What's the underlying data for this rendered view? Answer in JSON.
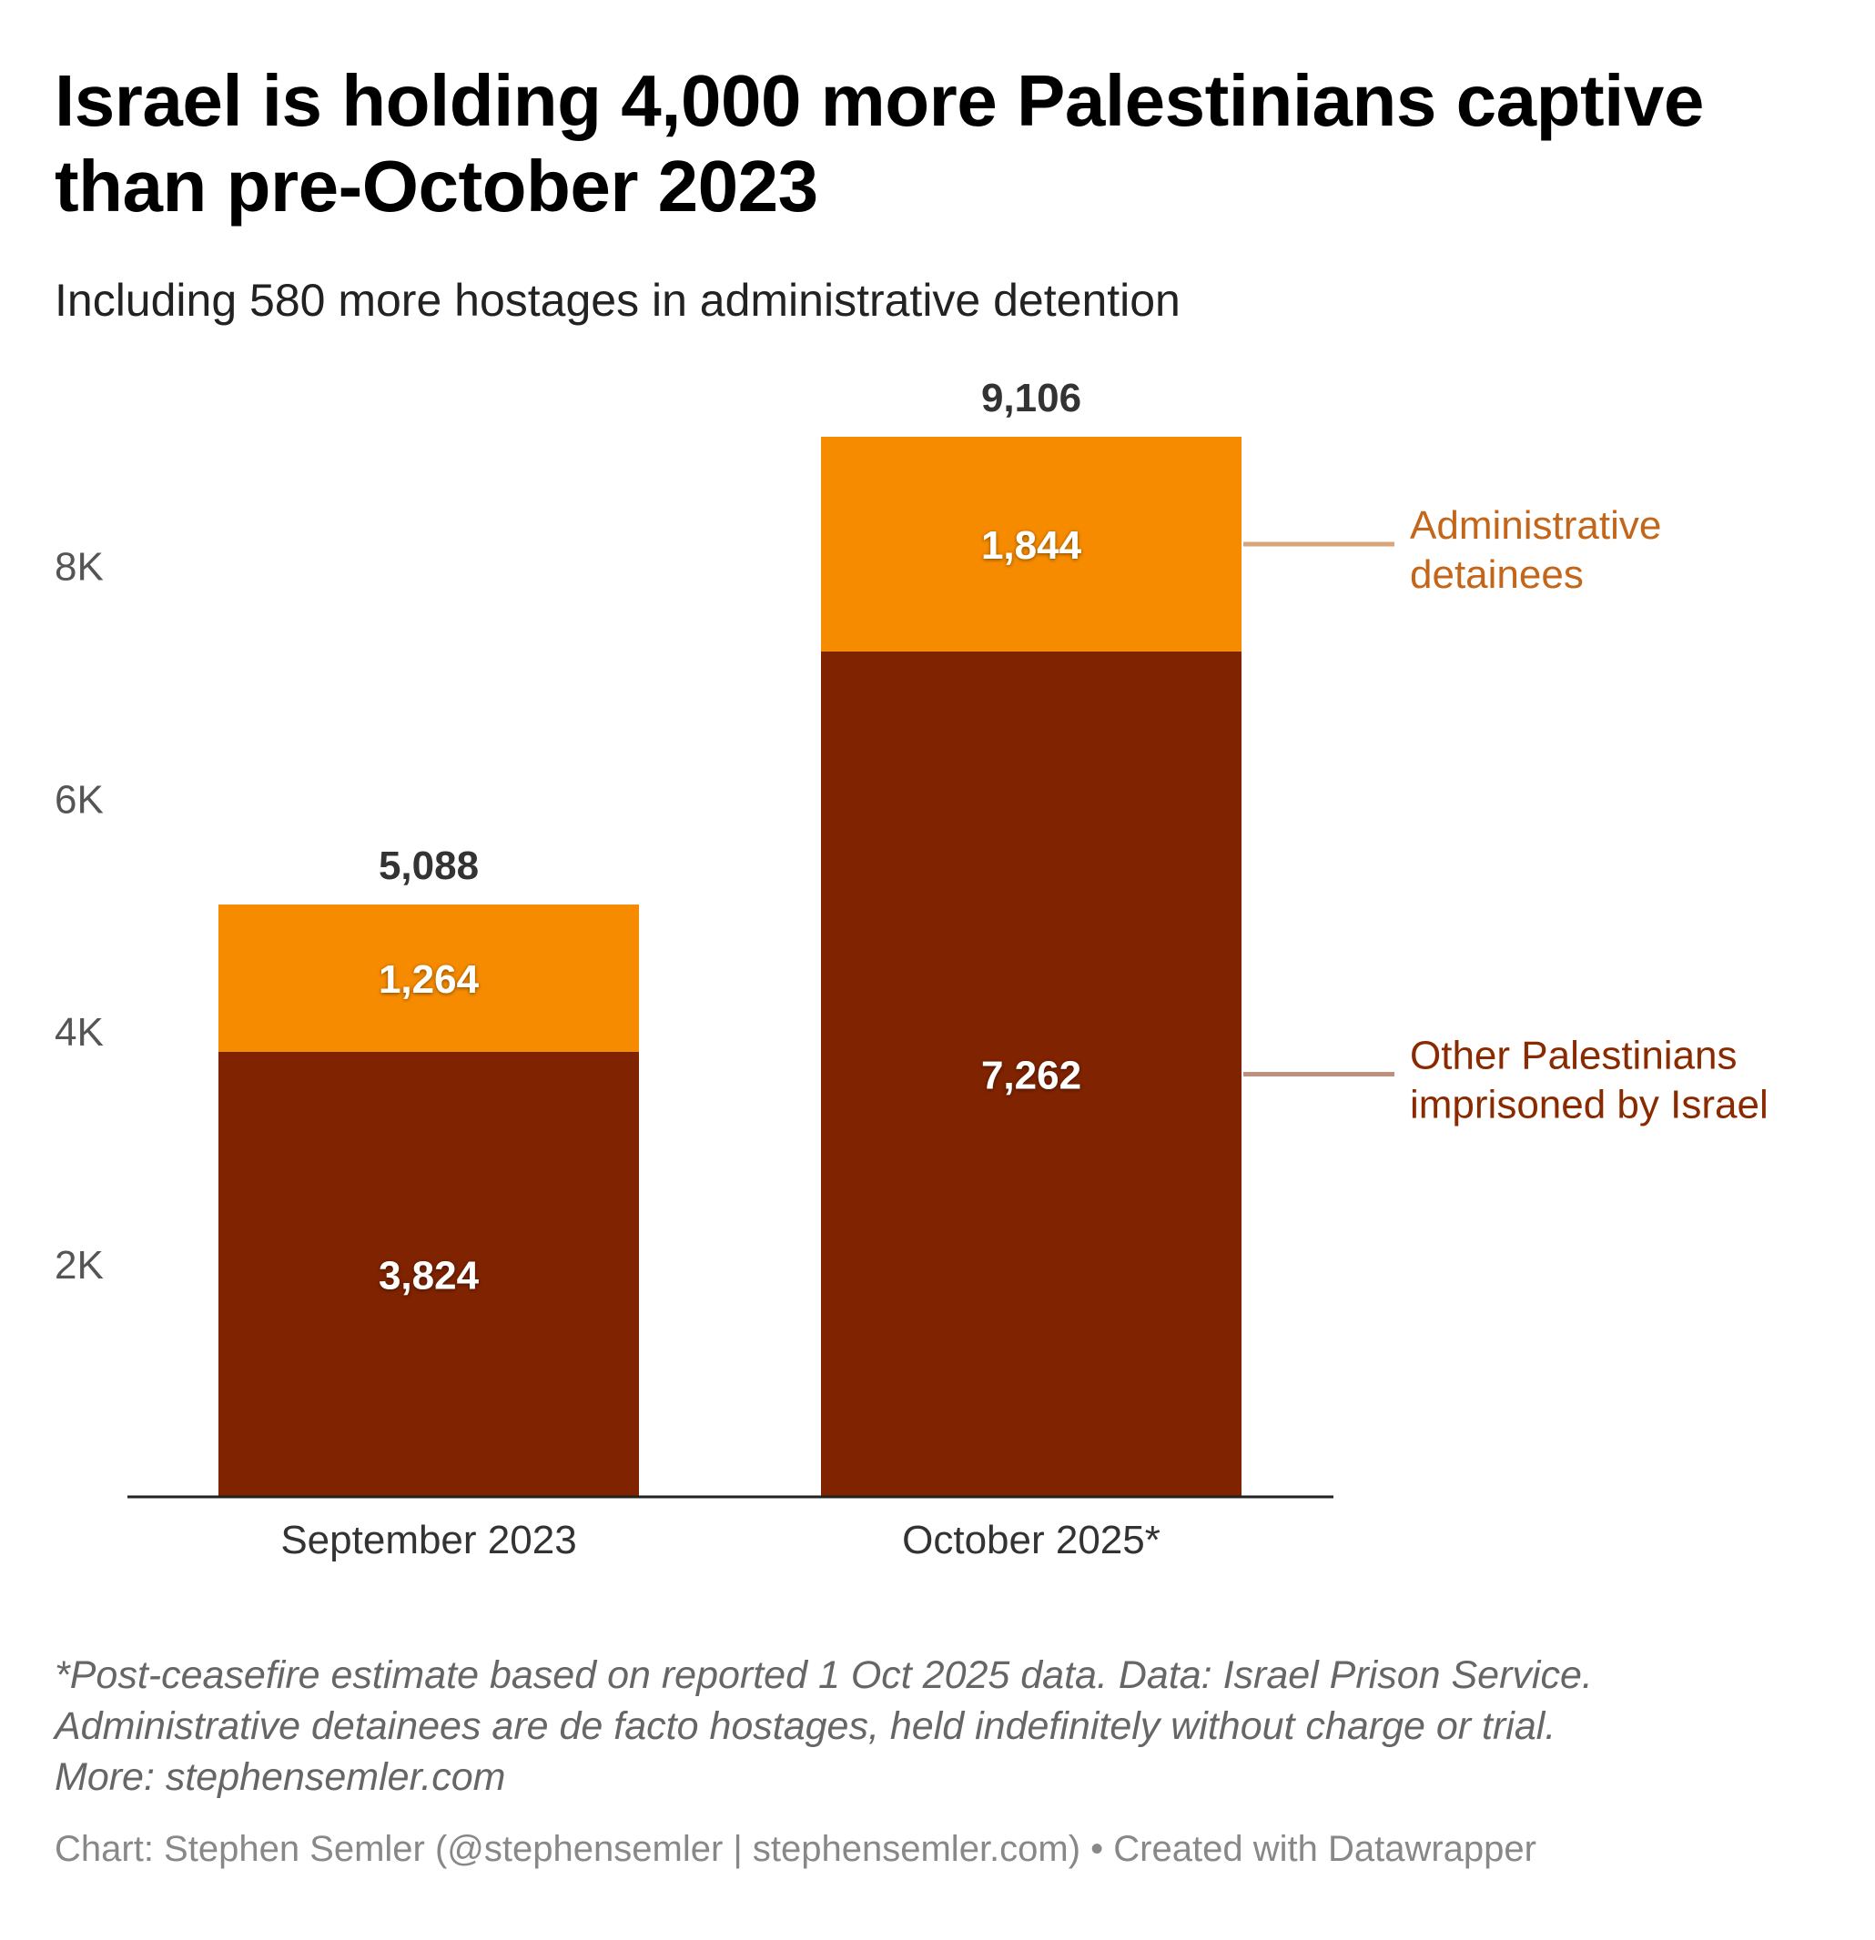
{
  "header": {
    "title": "Israel is holding 4,000 more Palestinians captive than pre-October 2023",
    "subtitle": "Including 580 more hostages in administrative detention"
  },
  "chart_data": {
    "type": "bar",
    "stacked": true,
    "title": "Israel is holding 4,000 more Palestinians captive than pre-October 2023",
    "subtitle": "Including 580 more hostages in administrative detention",
    "categories": [
      "September 2023",
      "October 2025*"
    ],
    "series": [
      {
        "name": "Other Palestinians imprisoned by Israel",
        "values": [
          3824,
          7262
        ],
        "labels": [
          "3,824",
          "7,262"
        ],
        "color": "#7f2300"
      },
      {
        "name": "Administrative detainees",
        "values": [
          1264,
          1844
        ],
        "labels": [
          "1,264",
          "1,844"
        ],
        "color": "#f78b00"
      }
    ],
    "totals": [
      5088,
      9106
    ],
    "total_labels": [
      "5,088",
      "9,106"
    ],
    "yticks": [
      2000,
      4000,
      6000,
      8000
    ],
    "ytick_labels": [
      "2K",
      "4K",
      "6K",
      "8K"
    ],
    "ylim": [
      0,
      9106
    ],
    "grid": false,
    "legend": [
      {
        "text": "Administrative detainees",
        "color": "#c4661a",
        "line_color": "#d9a57a"
      },
      {
        "text": "Other Palestinians imprisoned by Israel",
        "color": "#8a2a00",
        "line_color": "#c0907c"
      }
    ],
    "legend_position": "right"
  },
  "footer": {
    "notes": [
      "*Post-ceasefire estimate based on reported 1 Oct 2025 data. Data: Israel Prison Service.",
      "Administrative detainees are de facto hostages, held indefinitely without charge or trial.",
      "More: stephensemler.com"
    ],
    "credit": "Chart: Stephen Semler (@stephensemler | stephensemler.com) • Created with Datawrapper"
  }
}
